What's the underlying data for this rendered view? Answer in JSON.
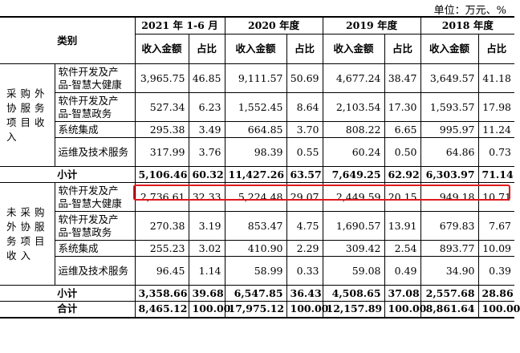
{
  "unit": "单位：万元、%",
  "header": {
    "category": "类别",
    "periods": [
      "2021 年 1-6 月",
      "2020 年度",
      "2019 年度",
      "2018 年度"
    ],
    "col_revenue": "收入金额",
    "col_ratio": "占比"
  },
  "groups": [
    {
      "name": "采购外协服务项目收入",
      "rows": [
        {
          "item": "软件开发及产品-智慧大健康",
          "values": [
            "3,965.75",
            "46.85",
            "9,111.57",
            "50.69",
            "4,677.24",
            "38.47",
            "3,649.57",
            "41.18"
          ]
        },
        {
          "item": "软件开发及产品-智慧政务",
          "values": [
            "527.34",
            "6.23",
            "1,552.45",
            "8.64",
            "2,103.54",
            "17.30",
            "1,593.57",
            "17.98"
          ]
        },
        {
          "item": "系统集成",
          "values": [
            "295.38",
            "3.49",
            "664.85",
            "3.70",
            "808.22",
            "6.65",
            "995.97",
            "11.24"
          ]
        },
        {
          "item": "运维及技术服务",
          "values": [
            "317.99",
            "3.76",
            "98.39",
            "0.55",
            "60.24",
            "0.50",
            "64.86",
            "0.73"
          ]
        }
      ],
      "subtotal": {
        "label": "小计",
        "values": [
          "5,106.46",
          "60.32",
          "11,427.26",
          "63.57",
          "7,649.25",
          "62.92",
          "6,303.97",
          "71.14"
        ]
      }
    },
    {
      "name": "未采购外协服务项目收入",
      "rows": [
        {
          "item": "软件开发及产品-智慧大健康",
          "values": [
            "2,736.61",
            "32.33",
            "5,224.48",
            "29.07",
            "2,449.59",
            "20.15",
            "949.18",
            "10.71"
          ]
        },
        {
          "item": "软件开发及产品-智慧政务",
          "values": [
            "270.38",
            "3.19",
            "853.47",
            "4.75",
            "1,690.57",
            "13.91",
            "679.83",
            "7.67"
          ]
        },
        {
          "item": "系统集成",
          "values": [
            "255.23",
            "3.02",
            "410.90",
            "2.29",
            "309.42",
            "2.54",
            "893.77",
            "10.09"
          ]
        },
        {
          "item": "运维及技术服务",
          "values": [
            "96.45",
            "1.14",
            "58.99",
            "0.33",
            "59.08",
            "0.49",
            "34.90",
            "0.39"
          ]
        }
      ],
      "subtotal": {
        "label": "小计",
        "values": [
          "3,358.66",
          "39.68",
          "6,547.85",
          "36.43",
          "4,508.65",
          "37.08",
          "2,557.68",
          "28.86"
        ]
      }
    }
  ],
  "total": {
    "label": "合计",
    "values": [
      "8,465.12",
      "100.00",
      "17,975.12",
      "100.00",
      "12,157.89",
      "100.00",
      "8,861.64",
      "100.00"
    ]
  },
  "highlight_color": "#e0191e"
}
